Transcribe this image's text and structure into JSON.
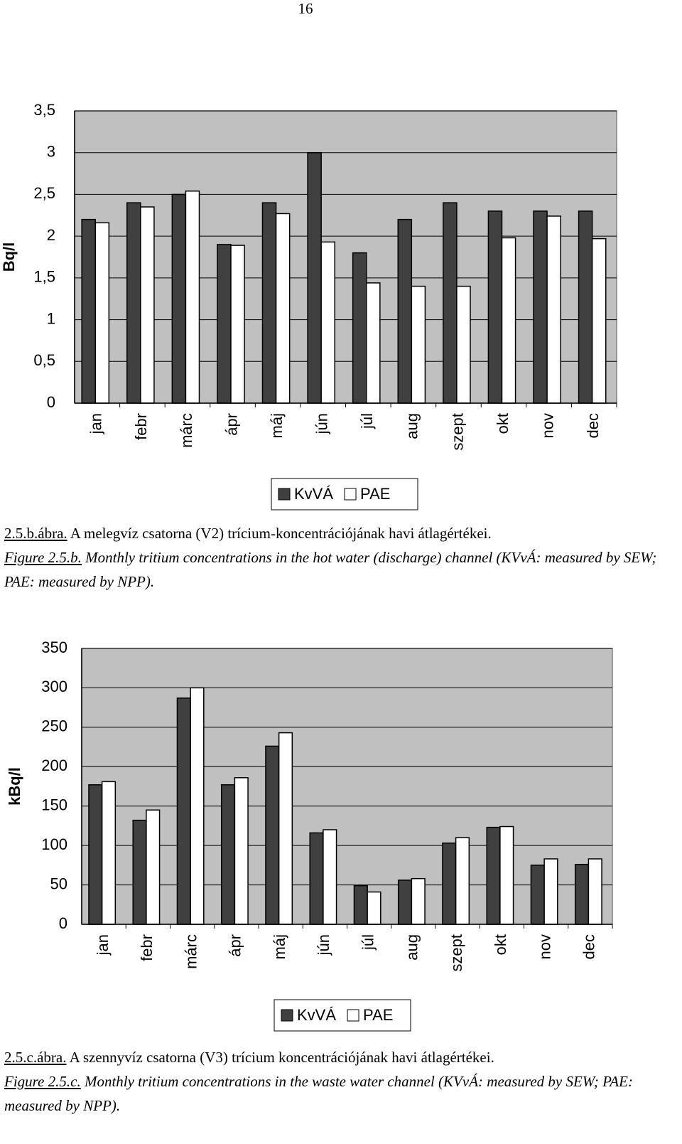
{
  "page_number": "16",
  "chart_data": [
    {
      "type": "bar",
      "y_label": "Bq/l",
      "categories": [
        "jan",
        "febr",
        "márc",
        "ápr",
        "máj",
        "jún",
        "júl",
        "aug",
        "szept",
        "okt",
        "nov",
        "dec"
      ],
      "series": [
        {
          "name": "KvVÁ",
          "color": "#404040",
          "values": [
            2.2,
            2.4,
            2.5,
            1.9,
            2.4,
            3.0,
            1.8,
            2.2,
            2.4,
            2.3,
            2.3,
            2.3
          ]
        },
        {
          "name": "PAE",
          "color": "#ffffff",
          "values": [
            2.16,
            2.35,
            2.54,
            1.89,
            2.27,
            1.93,
            1.44,
            1.4,
            1.4,
            1.98,
            2.24,
            1.97
          ]
        }
      ],
      "ylim": [
        0,
        3.5
      ],
      "yticks": [
        0,
        {
          "value": 0.5,
          "label": "0,5"
        },
        1,
        {
          "value": 1.5,
          "label": "1,5"
        },
        2,
        {
          "value": 2.5,
          "label": "2,5"
        },
        3,
        {
          "value": 3.5,
          "label": "3,5"
        }
      ],
      "grid": true,
      "plot_background": "#c0c0c0",
      "legend": "bottom",
      "caption": {
        "hu_label": "2.5.b.ábra.",
        "hu_text": "A melegvíz csatorna (V2) trícium-koncentrációjának havi átlagértékei.",
        "en_label": "Figure 2.5.b.",
        "en_text": "Monthly tritium concentrations in the hot water (discharge) channel (KVvÁ: measured by SEW; PAE: measured by NPP)."
      }
    },
    {
      "type": "bar",
      "y_label": "kBq/l",
      "categories": [
        "jan",
        "febr",
        "márc",
        "ápr",
        "máj",
        "jún",
        "júl",
        "aug",
        "szept",
        "okt",
        "nov",
        "dec"
      ],
      "series": [
        {
          "name": "KvVÁ",
          "color": "#404040",
          "values": [
            177,
            132,
            287,
            177,
            226,
            116,
            49,
            56,
            103,
            123,
            75,
            76
          ]
        },
        {
          "name": "PAE",
          "color": "#ffffff",
          "values": [
            181,
            145,
            300,
            186,
            243,
            120,
            41,
            58,
            110,
            124,
            83,
            83
          ]
        }
      ],
      "ylim": [
        0,
        350
      ],
      "yticks": [
        0,
        50,
        100,
        150,
        200,
        250,
        300,
        350
      ],
      "grid": true,
      "plot_background": "#c0c0c0",
      "legend": "bottom",
      "caption": {
        "hu_label": "2.5.c.ábra.",
        "hu_text": "A szennyvíz csatorna (V3) trícium koncentrációjának havi átlagértékei.",
        "en_label": "Figure 2.5.c.",
        "en_text": "Monthly tritium concentrations in the waste water channel (KVvÁ: measured by SEW; PAE: measured by NPP)."
      }
    }
  ]
}
